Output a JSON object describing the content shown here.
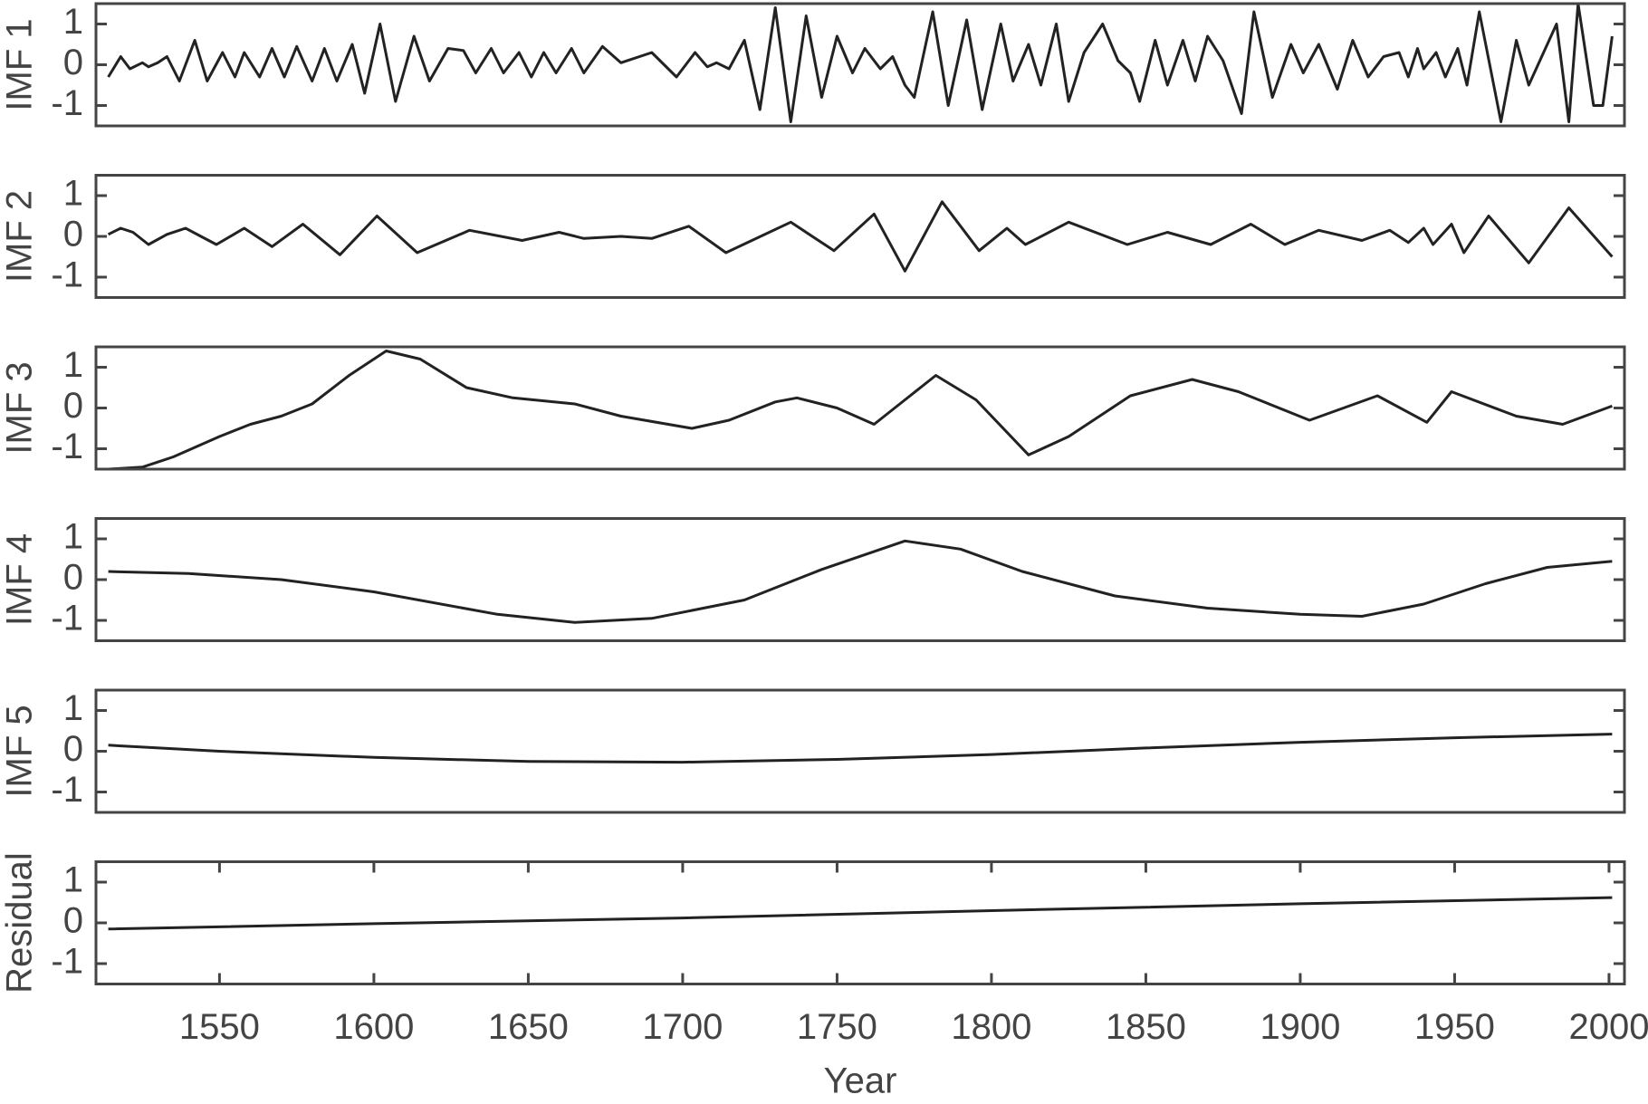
{
  "chart_data": [
    {
      "type": "line",
      "ylabel": "IMF 1",
      "color": "#222222",
      "xlim": [
        1510,
        2005
      ],
      "ylim": [
        -1.5,
        1.5
      ],
      "yticks": [
        -1,
        0,
        1
      ],
      "x": [
        1514,
        1518,
        1521,
        1525,
        1527,
        1530,
        1533,
        1537,
        1542,
        1546,
        1551,
        1555,
        1558,
        1563,
        1567,
        1571,
        1575,
        1580,
        1584,
        1588,
        1593,
        1597,
        1602,
        1607,
        1613,
        1618,
        1624,
        1629,
        1633,
        1638,
        1642,
        1647,
        1651,
        1655,
        1659,
        1664,
        1668,
        1674,
        1680,
        1690,
        1698,
        1704,
        1708,
        1711,
        1715,
        1720,
        1725,
        1730,
        1735,
        1740,
        1745,
        1750,
        1755,
        1759,
        1764,
        1768,
        1772,
        1775,
        1781,
        1786,
        1792,
        1797,
        1803,
        1807,
        1812,
        1816,
        1821,
        1825,
        1830,
        1836,
        1841,
        1845,
        1848,
        1853,
        1857,
        1862,
        1866,
        1870,
        1875,
        1881,
        1885,
        1891,
        1897,
        1901,
        1906,
        1912,
        1917,
        1922,
        1927,
        1932,
        1935,
        1938,
        1940,
        1944,
        1947,
        1951,
        1954,
        1958,
        1965,
        1970,
        1974,
        1983,
        1987,
        1990,
        1995,
        1998,
        2001
      ],
      "values": [
        -0.3,
        0.2,
        -0.1,
        0.05,
        -0.05,
        0.05,
        0.2,
        -0.4,
        0.6,
        -0.4,
        0.3,
        -0.3,
        0.3,
        -0.3,
        0.4,
        -0.3,
        0.45,
        -0.4,
        0.4,
        -0.4,
        0.5,
        -0.7,
        1.0,
        -0.9,
        0.7,
        -0.4,
        0.4,
        0.35,
        -0.2,
        0.4,
        -0.2,
        0.3,
        -0.3,
        0.3,
        -0.2,
        0.4,
        -0.2,
        0.45,
        0.05,
        0.3,
        -0.3,
        0.3,
        -0.05,
        0.05,
        -0.1,
        0.6,
        -1.1,
        1.4,
        -1.4,
        1.2,
        -0.8,
        0.7,
        -0.2,
        0.4,
        -0.1,
        0.2,
        -0.5,
        -0.8,
        1.3,
        -1.0,
        1.1,
        -1.1,
        1.0,
        -0.4,
        0.5,
        -0.5,
        1.0,
        -0.9,
        0.3,
        1.0,
        0.1,
        -0.2,
        -0.9,
        0.6,
        -0.5,
        0.6,
        -0.4,
        0.7,
        0.1,
        -1.2,
        1.3,
        -0.8,
        0.5,
        -0.2,
        0.5,
        -0.6,
        0.6,
        -0.3,
        0.2,
        0.3,
        -0.3,
        0.4,
        -0.1,
        0.3,
        -0.3,
        0.4,
        -0.5,
        1.3,
        -1.4,
        0.6,
        -0.5,
        1.0,
        -1.4,
        1.5,
        -1.0,
        -1.0,
        0.7
      ]
    },
    {
      "type": "line",
      "ylabel": "IMF 2",
      "color": "#222222",
      "xlim": [
        1510,
        2005
      ],
      "ylim": [
        -1.5,
        1.5
      ],
      "yticks": [
        -1,
        0,
        1
      ],
      "x": [
        1514,
        1518,
        1522,
        1527,
        1533,
        1539,
        1544,
        1549,
        1558,
        1567,
        1577,
        1589,
        1601,
        1614,
        1631,
        1648,
        1660,
        1668,
        1680,
        1690,
        1702,
        1714,
        1735,
        1749,
        1762,
        1772,
        1784,
        1796,
        1805,
        1811,
        1825,
        1844,
        1857,
        1871,
        1884,
        1895,
        1906,
        1920,
        1929,
        1935,
        1940,
        1943,
        1949,
        1953,
        1961,
        1974,
        1987,
        2001
      ],
      "values": [
        0.05,
        0.2,
        0.1,
        -0.2,
        0.05,
        0.2,
        0.0,
        -0.2,
        0.2,
        -0.25,
        0.3,
        -0.45,
        0.5,
        -0.4,
        0.15,
        -0.1,
        0.1,
        -0.05,
        0.0,
        -0.05,
        0.25,
        -0.4,
        0.35,
        -0.35,
        0.55,
        -0.85,
        0.85,
        -0.35,
        0.2,
        -0.2,
        0.35,
        -0.2,
        0.1,
        -0.2,
        0.3,
        -0.2,
        0.15,
        -0.1,
        0.15,
        -0.15,
        0.2,
        -0.2,
        0.3,
        -0.4,
        0.5,
        -0.65,
        0.7,
        -0.5
      ]
    },
    {
      "type": "line",
      "ylabel": "IMF 3",
      "color": "#222222",
      "xlim": [
        1510,
        2005
      ],
      "ylim": [
        -1.5,
        1.5
      ],
      "yticks": [
        -1,
        0,
        1
      ],
      "x": [
        1514,
        1525,
        1535,
        1550,
        1560,
        1570,
        1580,
        1592,
        1604,
        1615,
        1630,
        1645,
        1665,
        1680,
        1703,
        1715,
        1730,
        1737,
        1750,
        1762,
        1772,
        1782,
        1795,
        1812,
        1825,
        1845,
        1865,
        1880,
        1903,
        1925,
        1941,
        1949,
        1970,
        1985,
        2001
      ],
      "values": [
        -1.5,
        -1.45,
        -1.2,
        -0.7,
        -0.4,
        -0.2,
        0.1,
        0.8,
        1.4,
        1.2,
        0.5,
        0.25,
        0.1,
        -0.2,
        -0.5,
        -0.3,
        0.15,
        0.25,
        0.0,
        -0.4,
        0.2,
        0.8,
        0.2,
        -1.15,
        -0.7,
        0.3,
        0.7,
        0.4,
        -0.3,
        0.3,
        -0.35,
        0.4,
        -0.2,
        -0.4,
        0.05
      ]
    },
    {
      "type": "line",
      "ylabel": "IMF 4",
      "color": "#222222",
      "xlim": [
        1510,
        2005
      ],
      "ylim": [
        -1.5,
        1.5
      ],
      "yticks": [
        -1,
        0,
        1
      ],
      "x": [
        1514,
        1540,
        1570,
        1600,
        1640,
        1665,
        1690,
        1720,
        1745,
        1772,
        1790,
        1810,
        1840,
        1870,
        1900,
        1920,
        1940,
        1960,
        1980,
        2001
      ],
      "values": [
        0.2,
        0.15,
        0.0,
        -0.3,
        -0.85,
        -1.05,
        -0.95,
        -0.5,
        0.25,
        0.95,
        0.75,
        0.2,
        -0.4,
        -0.7,
        -0.85,
        -0.9,
        -0.6,
        -0.1,
        0.3,
        0.45
      ]
    },
    {
      "type": "line",
      "ylabel": "IMF 5",
      "color": "#222222",
      "xlim": [
        1510,
        2005
      ],
      "ylim": [
        -1.5,
        1.5
      ],
      "yticks": [
        -1,
        0,
        1
      ],
      "x": [
        1514,
        1550,
        1600,
        1650,
        1700,
        1750,
        1800,
        1850,
        1900,
        1950,
        2001
      ],
      "values": [
        0.15,
        0.0,
        -0.15,
        -0.25,
        -0.27,
        -0.2,
        -0.08,
        0.08,
        0.22,
        0.33,
        0.42
      ]
    },
    {
      "type": "line",
      "ylabel": "Residual",
      "xlabel": "Year",
      "color": "#222222",
      "xlim": [
        1510,
        2005
      ],
      "ylim": [
        -1.5,
        1.5
      ],
      "yticks": [
        -1,
        0,
        1
      ],
      "xticks": [
        1550,
        1600,
        1650,
        1700,
        1750,
        1800,
        1850,
        1900,
        1950,
        2000
      ],
      "x": [
        1514,
        1600,
        1700,
        1800,
        1900,
        2001
      ],
      "values": [
        -0.15,
        -0.02,
        0.12,
        0.3,
        0.47,
        0.62
      ]
    }
  ]
}
